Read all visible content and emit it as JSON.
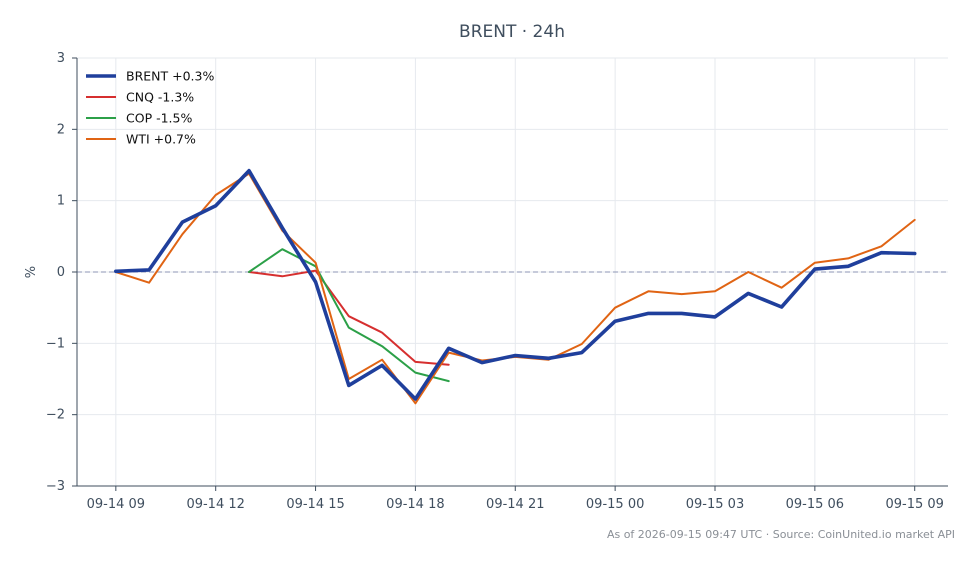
{
  "chart_data": {
    "type": "line",
    "title": "BRENT · 24h",
    "ylabel": "%",
    "xlabel": "",
    "ylim": [
      -3,
      3
    ],
    "yticks": [
      3,
      2,
      1,
      0,
      -1,
      -2,
      -3
    ],
    "ytick_labels": [
      "3",
      "2",
      "1",
      "0",
      "−1",
      "−2",
      "−3"
    ],
    "xlim": [
      "2026-09-14 07:50",
      "2026-09-15 10:00"
    ],
    "xticks": [
      "2026-09-14 09:00",
      "2026-09-14 12:00",
      "2026-09-14 15:00",
      "2026-09-14 18:00",
      "2026-09-14 21:00",
      "2026-09-15 00:00",
      "2026-09-15 03:00",
      "2026-09-15 06:00",
      "2026-09-15 09:00"
    ],
    "xtick_labels": [
      "09-14 09",
      "09-14 12",
      "09-14 15",
      "09-14 18",
      "09-14 21",
      "09-15 00",
      "09-15 03",
      "09-15 06",
      "09-15 09"
    ],
    "grid": true,
    "zero_line": true,
    "legend_position": "top-left",
    "series": [
      {
        "name": "BRENT +0.3%",
        "color": "#1f3f9c",
        "width": "thick",
        "x": [
          "2026-09-14 09:00",
          "2026-09-14 10:00",
          "2026-09-14 11:00",
          "2026-09-14 12:00",
          "2026-09-14 13:00",
          "2026-09-14 14:00",
          "2026-09-14 15:00",
          "2026-09-14 16:00",
          "2026-09-14 17:00",
          "2026-09-14 18:00",
          "2026-09-14 19:00",
          "2026-09-14 20:00",
          "2026-09-14 21:00",
          "2026-09-14 22:00",
          "2026-09-14 23:00",
          "2026-09-15 00:00",
          "2026-09-15 01:00",
          "2026-09-15 02:00",
          "2026-09-15 03:00",
          "2026-09-15 04:00",
          "2026-09-15 05:00",
          "2026-09-15 06:00",
          "2026-09-15 07:00",
          "2026-09-15 08:00",
          "2026-09-15 09:00"
        ],
        "y": [
          0.01,
          0.03,
          0.7,
          0.93,
          1.42,
          0.62,
          -0.14,
          -1.59,
          -1.31,
          -1.78,
          -1.07,
          -1.27,
          -1.17,
          -1.21,
          -1.13,
          -0.69,
          -0.58,
          -0.58,
          -0.63,
          -0.3,
          -0.49,
          0.04,
          0.08,
          0.27,
          0.26
        ]
      },
      {
        "name": "CNQ -1.3%",
        "color": "#d62f2f",
        "width": "normal",
        "x": [
          "2026-09-14 13:00",
          "2026-09-14 14:00",
          "2026-09-14 15:00",
          "2026-09-14 16:00",
          "2026-09-14 17:00",
          "2026-09-14 18:00",
          "2026-09-14 19:00"
        ],
        "y": [
          0.0,
          -0.06,
          0.02,
          -0.62,
          -0.85,
          -1.26,
          -1.3
        ]
      },
      {
        "name": "COP -1.5%",
        "color": "#2ca048",
        "width": "normal",
        "x": [
          "2026-09-14 13:00",
          "2026-09-14 14:00",
          "2026-09-14 15:00",
          "2026-09-14 16:00",
          "2026-09-14 17:00",
          "2026-09-14 18:00",
          "2026-09-14 19:00"
        ],
        "y": [
          0.0,
          0.32,
          0.08,
          -0.78,
          -1.04,
          -1.41,
          -1.53
        ]
      },
      {
        "name": "WTI +0.7%",
        "color": "#e06414",
        "width": "normal",
        "x": [
          "2026-09-14 09:00",
          "2026-09-14 10:00",
          "2026-09-14 11:00",
          "2026-09-14 12:00",
          "2026-09-14 13:00",
          "2026-09-14 14:00",
          "2026-09-14 15:00",
          "2026-09-14 16:00",
          "2026-09-14 17:00",
          "2026-09-14 18:00",
          "2026-09-14 19:00",
          "2026-09-14 20:00",
          "2026-09-14 21:00",
          "2026-09-14 22:00",
          "2026-09-14 23:00",
          "2026-09-15 00:00",
          "2026-09-15 01:00",
          "2026-09-15 02:00",
          "2026-09-15 03:00",
          "2026-09-15 04:00",
          "2026-09-15 05:00",
          "2026-09-15 06:00",
          "2026-09-15 07:00",
          "2026-09-15 08:00",
          "2026-09-15 09:00"
        ],
        "y": [
          0.0,
          -0.15,
          0.53,
          1.08,
          1.38,
          0.58,
          0.13,
          -1.5,
          -1.23,
          -1.84,
          -1.13,
          -1.24,
          -1.19,
          -1.23,
          -1.01,
          -0.5,
          -0.27,
          -0.31,
          -0.27,
          0.0,
          -0.22,
          0.13,
          0.19,
          0.36,
          0.73
        ]
      }
    ]
  },
  "footer": "As of 2026-09-15 09:47 UTC · Source: CoinUnited.io market API"
}
